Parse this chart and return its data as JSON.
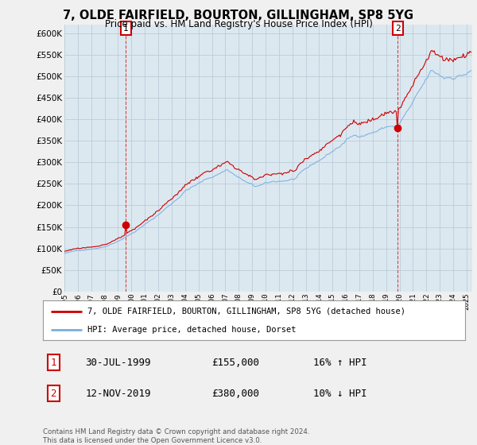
{
  "title": "7, OLDE FAIRFIELD, BOURTON, GILLINGHAM, SP8 5YG",
  "subtitle": "Price paid vs. HM Land Registry's House Price Index (HPI)",
  "ylim": [
    0,
    620000
  ],
  "yticks": [
    0,
    50000,
    100000,
    150000,
    200000,
    250000,
    300000,
    350000,
    400000,
    450000,
    500000,
    550000,
    600000
  ],
  "xlim_start": 1995.0,
  "xlim_end": 2025.42,
  "background_color": "#f0f0f0",
  "plot_bg_color": "#dce8f0",
  "grid_color": "#bbccd8",
  "line1_color": "#cc0000",
  "line2_color": "#7aade0",
  "sale1_x": 1999.58,
  "sale1_y": 155000,
  "sale2_x": 2019.87,
  "sale2_y": 380000,
  "legend_line1": "7, OLDE FAIRFIELD, BOURTON, GILLINGHAM, SP8 5YG (detached house)",
  "legend_line2": "HPI: Average price, detached house, Dorset",
  "table_data": [
    [
      "1",
      "30-JUL-1999",
      "£155,000",
      "16% ↑ HPI"
    ],
    [
      "2",
      "12-NOV-2019",
      "£380,000",
      "10% ↓ HPI"
    ]
  ],
  "footer": "Contains HM Land Registry data © Crown copyright and database right 2024.\nThis data is licensed under the Open Government Licence v3.0."
}
